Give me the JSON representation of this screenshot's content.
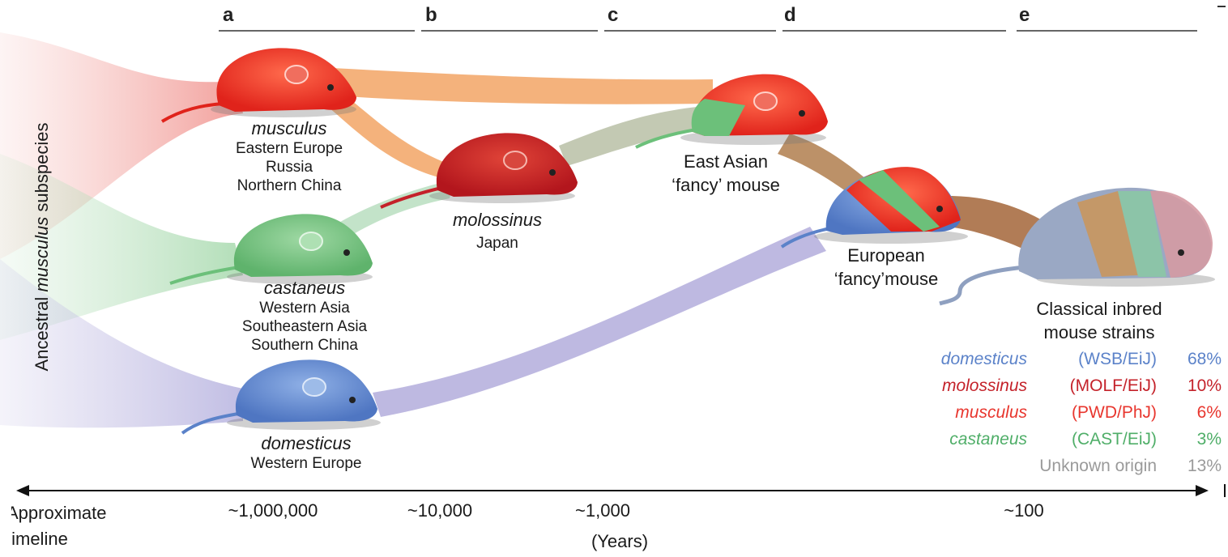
{
  "stages": [
    "a",
    "b",
    "c",
    "d",
    "e"
  ],
  "vertical_label": {
    "pre": "Ancestral ",
    "italic": "musculus",
    "post": " subspecies"
  },
  "subspecies": [
    {
      "name": "musculus",
      "locations": [
        "Eastern Europe",
        "Russia",
        "Northern China"
      ],
      "color": "#e8362e"
    },
    {
      "name": "castaneus",
      "locations": [
        "Western Asia",
        "Southeastern Asia",
        "Southern China"
      ],
      "color": "#6cc07a"
    },
    {
      "name": "domesticus",
      "locations": [
        "Western Europe"
      ],
      "color": "#5b82c9"
    }
  ],
  "molossinus": {
    "name": "molossinus",
    "location": "Japan",
    "color": "#c4222a"
  },
  "east_asian_fancy": [
    "East Asian",
    "‘fancy’ mouse"
  ],
  "european_fancy": [
    "European",
    "‘fancy’mouse"
  ],
  "classical": [
    "Classical inbred",
    "mouse strains"
  ],
  "composition": [
    {
      "name": "domesticus",
      "strain": "(WSB/EiJ)",
      "pct": "68%",
      "color": "#5b82c9"
    },
    {
      "name": "molossinus",
      "strain": "(MOLF/EiJ)",
      "pct": "10%",
      "color": "#c4222a"
    },
    {
      "name": "musculus",
      "strain": "(PWD/PhJ)",
      "pct": "6%",
      "color": "#e8362e"
    },
    {
      "name": "castaneus",
      "strain": "(CAST/EiJ)",
      "pct": "3%",
      "color": "#4fae68"
    },
    {
      "name": "",
      "strain": "Unknown origin",
      "pct": "13%",
      "color": "#9a9a9a"
    }
  ],
  "timeline": {
    "label": [
      "Approximate",
      "timeline"
    ],
    "ticks": [
      "~1,000,000",
      "~10,000",
      "~1,000",
      "~100"
    ],
    "units": "(Years)"
  }
}
